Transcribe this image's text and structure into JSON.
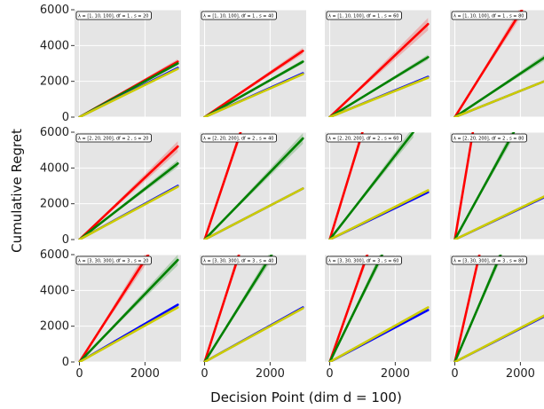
{
  "chart_data": {
    "type": "line",
    "layout": {
      "rows": 3,
      "cols": 4
    },
    "xlabel": "Decision Point (dim d = 100)",
    "ylabel": "Cumulative Regret",
    "xlim": [
      -150,
      3100
    ],
    "ylim": [
      0,
      6000
    ],
    "xticks": [
      0,
      2000
    ],
    "xtick_labels": [
      "0",
      "2000"
    ],
    "yticks": [
      0,
      2000,
      4000,
      6000
    ],
    "ytick_labels": [
      "0",
      "2000",
      "4000",
      "6000"
    ],
    "grid": true,
    "legend": "none",
    "series_colors": [
      "#ff0000",
      "#008000",
      "#0000ff",
      "#cccc00"
    ],
    "panels": [
      {
        "title": "λ = [1, 10, 100], df = 1 , s = 20",
        "series": [
          {
            "color": "#ff0000",
            "x": [
              0,
              3000
            ],
            "y": [
              0,
              3100
            ],
            "band": 150
          },
          {
            "color": "#008000",
            "x": [
              0,
              3000
            ],
            "y": [
              0,
              3000
            ],
            "band": 100
          },
          {
            "color": "#0000ff",
            "x": [
              0,
              3000
            ],
            "y": [
              0,
              2750
            ],
            "band": 50
          },
          {
            "color": "#cccc00",
            "x": [
              0,
              3000
            ],
            "y": [
              0,
              2700
            ],
            "band": 40
          }
        ]
      },
      {
        "title": "λ = [1, 10, 100], df = 1 , s = 40",
        "series": [
          {
            "color": "#ff0000",
            "x": [
              0,
              3000
            ],
            "y": [
              0,
              3700
            ],
            "band": 180
          },
          {
            "color": "#008000",
            "x": [
              0,
              3000
            ],
            "y": [
              0,
              3100
            ],
            "band": 120
          },
          {
            "color": "#0000ff",
            "x": [
              0,
              3000
            ],
            "y": [
              0,
              2450
            ],
            "band": 50
          },
          {
            "color": "#cccc00",
            "x": [
              0,
              3000
            ],
            "y": [
              0,
              2400
            ],
            "band": 40
          }
        ]
      },
      {
        "title": "λ = [1, 10, 100], df = 1 , s = 60",
        "series": [
          {
            "color": "#ff0000",
            "x": [
              0,
              3000
            ],
            "y": [
              0,
              5200
            ],
            "band": 350
          },
          {
            "color": "#008000",
            "x": [
              0,
              3000
            ],
            "y": [
              0,
              3350
            ],
            "band": 150
          },
          {
            "color": "#0000ff",
            "x": [
              0,
              3000
            ],
            "y": [
              0,
              2250
            ],
            "band": 50
          },
          {
            "color": "#cccc00",
            "x": [
              0,
              3000
            ],
            "y": [
              0,
              2200
            ],
            "band": 40
          }
        ]
      },
      {
        "title": "λ = [1, 10, 100], df = 1 , s = 80",
        "series": [
          {
            "color": "#ff0000",
            "x": [
              0,
              2050
            ],
            "y": [
              0,
              6000
            ],
            "band": 300
          },
          {
            "color": "#008000",
            "x": [
              0,
              3000
            ],
            "y": [
              0,
              3650
            ],
            "band": 200
          },
          {
            "color": "#0000ff",
            "x": [
              0,
              3000
            ],
            "y": [
              0,
              2200
            ],
            "band": 50
          },
          {
            "color": "#cccc00",
            "x": [
              0,
              3000
            ],
            "y": [
              0,
              2200
            ],
            "band": 40
          }
        ]
      },
      {
        "title": "λ = [2, 20, 200], df = 2 , s = 20",
        "series": [
          {
            "color": "#ff0000",
            "x": [
              0,
              3000
            ],
            "y": [
              0,
              5200
            ],
            "band": 300
          },
          {
            "color": "#008000",
            "x": [
              0,
              3000
            ],
            "y": [
              0,
              4250
            ],
            "band": 200
          },
          {
            "color": "#0000ff",
            "x": [
              0,
              3000
            ],
            "y": [
              0,
              3000
            ],
            "band": 60
          },
          {
            "color": "#cccc00",
            "x": [
              0,
              3000
            ],
            "y": [
              0,
              2950
            ],
            "band": 50
          }
        ]
      },
      {
        "title": "λ = [2, 20, 200], df = 2 , s = 40",
        "series": [
          {
            "color": "#ff0000",
            "x": [
              0,
              1100
            ],
            "y": [
              0,
              6000
            ],
            "band": 300
          },
          {
            "color": "#008000",
            "x": [
              0,
              3000
            ],
            "y": [
              0,
              5650
            ],
            "band": 300
          },
          {
            "color": "#0000ff",
            "x": [
              0,
              3000
            ],
            "y": [
              0,
              2850
            ],
            "band": 50
          },
          {
            "color": "#cccc00",
            "x": [
              0,
              3000
            ],
            "y": [
              0,
              2850
            ],
            "band": 40
          }
        ]
      },
      {
        "title": "λ = [2, 20, 200], df = 2 , s = 60",
        "series": [
          {
            "color": "#ff0000",
            "x": [
              0,
              1000
            ],
            "y": [
              0,
              6000
            ],
            "band": 300
          },
          {
            "color": "#008000",
            "x": [
              0,
              2550
            ],
            "y": [
              0,
              6000
            ],
            "band": 300
          },
          {
            "color": "#0000ff",
            "x": [
              0,
              3000
            ],
            "y": [
              0,
              2650
            ],
            "band": 50
          },
          {
            "color": "#cccc00",
            "x": [
              0,
              3000
            ],
            "y": [
              0,
              2750
            ],
            "band": 40
          }
        ]
      },
      {
        "title": "λ = [2, 20, 200], df = 2 , s = 80",
        "series": [
          {
            "color": "#ff0000",
            "x": [
              0,
              550
            ],
            "y": [
              0,
              6000
            ],
            "band": 300
          },
          {
            "color": "#008000",
            "x": [
              0,
              1800
            ],
            "y": [
              0,
              6000
            ],
            "band": 300
          },
          {
            "color": "#0000ff",
            "x": [
              0,
              3000
            ],
            "y": [
              0,
              2600
            ],
            "band": 50
          },
          {
            "color": "#cccc00",
            "x": [
              0,
              3000
            ],
            "y": [
              0,
              2650
            ],
            "band": 40
          }
        ]
      },
      {
        "title": "λ = [3, 30, 300], df = 3 , s = 20",
        "series": [
          {
            "color": "#ff0000",
            "x": [
              0,
              2100
            ],
            "y": [
              0,
              6000
            ],
            "band": 350
          },
          {
            "color": "#008000",
            "x": [
              0,
              3000
            ],
            "y": [
              0,
              5700
            ],
            "band": 300
          },
          {
            "color": "#0000ff",
            "x": [
              0,
              3000
            ],
            "y": [
              0,
              3200
            ],
            "band": 60
          },
          {
            "color": "#cccc00",
            "x": [
              0,
              3000
            ],
            "y": [
              0,
              3050
            ],
            "band": 50
          }
        ]
      },
      {
        "title": "λ = [3, 30, 300], df = 3 , s = 40",
        "series": [
          {
            "color": "#ff0000",
            "x": [
              0,
              1050
            ],
            "y": [
              0,
              6000
            ],
            "band": 300
          },
          {
            "color": "#008000",
            "x": [
              0,
              2050
            ],
            "y": [
              0,
              6000
            ],
            "band": 300
          },
          {
            "color": "#0000ff",
            "x": [
              0,
              3000
            ],
            "y": [
              0,
              3050
            ],
            "band": 50
          },
          {
            "color": "#cccc00",
            "x": [
              0,
              3000
            ],
            "y": [
              0,
              3000
            ],
            "band": 40
          }
        ]
      },
      {
        "title": "λ = [3, 30, 300], df = 3 , s = 60",
        "series": [
          {
            "color": "#ff0000",
            "x": [
              0,
              1150
            ],
            "y": [
              0,
              6000
            ],
            "band": 300
          },
          {
            "color": "#008000",
            "x": [
              0,
              1600
            ],
            "y": [
              0,
              6000
            ],
            "band": 300
          },
          {
            "color": "#0000ff",
            "x": [
              0,
              3000
            ],
            "y": [
              0,
              2900
            ],
            "band": 60
          },
          {
            "color": "#cccc00",
            "x": [
              0,
              3000
            ],
            "y": [
              0,
              3050
            ],
            "band": 50
          }
        ]
      },
      {
        "title": "λ = [3, 30, 300], df = 3 , s = 80",
        "series": [
          {
            "color": "#ff0000",
            "x": [
              0,
              750
            ],
            "y": [
              0,
              6000
            ],
            "band": 300
          },
          {
            "color": "#008000",
            "x": [
              0,
              1400
            ],
            "y": [
              0,
              6000
            ],
            "band": 300
          },
          {
            "color": "#0000ff",
            "x": [
              0,
              3000
            ],
            "y": [
              0,
              2800
            ],
            "band": 60
          },
          {
            "color": "#cccc00",
            "x": [
              0,
              3000
            ],
            "y": [
              0,
              2850
            ],
            "band": 50
          }
        ]
      }
    ]
  }
}
